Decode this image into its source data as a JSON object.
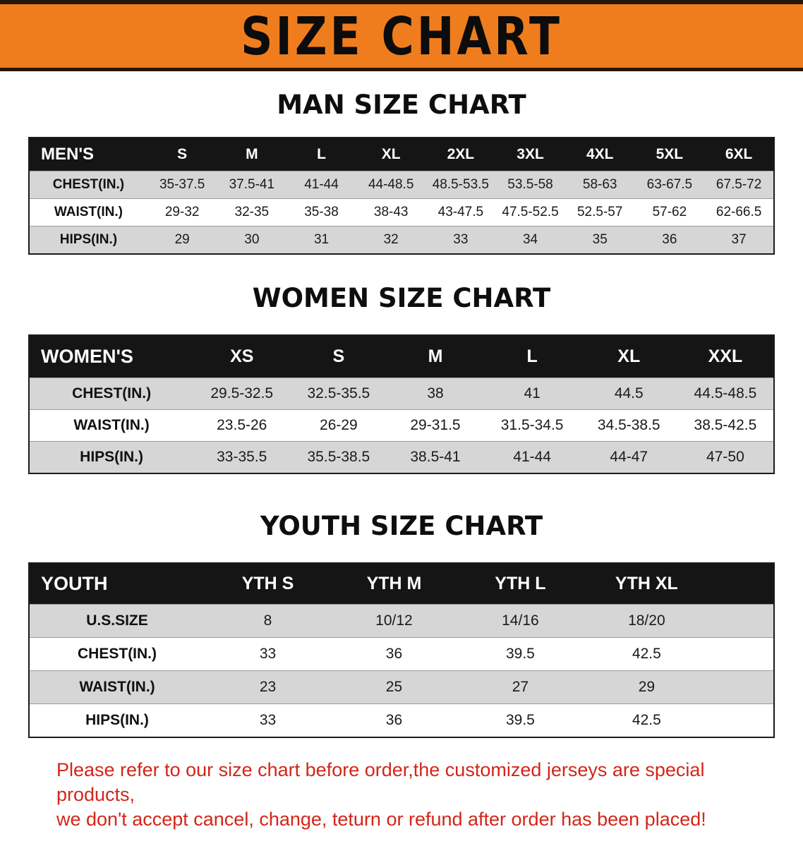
{
  "banner": {
    "title": "SIZE CHART",
    "bg_color": "#ef7d1d"
  },
  "sections": [
    {
      "heading": "MAN SIZE CHART",
      "columns": [
        "MEN'S",
        "S",
        "M",
        "L",
        "XL",
        "2XL",
        "3XL",
        "4XL",
        "5XL",
        "6XL"
      ],
      "rows": [
        [
          "CHEST(IN.)",
          "35-37.5",
          "37.5-41",
          "41-44",
          "44-48.5",
          "48.5-53.5",
          "53.5-58",
          "58-63",
          "63-67.5",
          "67.5-72"
        ],
        [
          "WAIST(IN.)",
          "29-32",
          "32-35",
          "35-38",
          "38-43",
          "43-47.5",
          "47.5-52.5",
          "52.5-57",
          "57-62",
          "62-66.5"
        ],
        [
          "HIPS(IN.)",
          "29",
          "30",
          "31",
          "32",
          "33",
          "34",
          "35",
          "36",
          "37"
        ]
      ]
    },
    {
      "heading": "WOMEN SIZE CHART",
      "columns": [
        "WOMEN'S",
        "XS",
        "S",
        "M",
        "L",
        "XL",
        "XXL"
      ],
      "rows": [
        [
          "CHEST(IN.)",
          "29.5-32.5",
          "32.5-35.5",
          "38",
          "41",
          "44.5",
          "44.5-48.5"
        ],
        [
          "WAIST(IN.)",
          "23.5-26",
          "26-29",
          "29-31.5",
          "31.5-34.5",
          "34.5-38.5",
          "38.5-42.5"
        ],
        [
          "HIPS(IN.)",
          "33-35.5",
          "35.5-38.5",
          "38.5-41",
          "41-44",
          "44-47",
          "47-50"
        ]
      ]
    },
    {
      "heading": "YOUTH SIZE CHART",
      "columns": [
        "YOUTH",
        "YTH S",
        "YTH M",
        "YTH L",
        "YTH XL"
      ],
      "rows": [
        [
          "U.S.SIZE",
          "8",
          "10/12",
          "14/16",
          "18/20"
        ],
        [
          "CHEST(IN.)",
          "33",
          "36",
          "39.5",
          "42.5"
        ],
        [
          "WAIST(IN.)",
          "23",
          "25",
          "27",
          "29"
        ],
        [
          "HIPS(IN.)",
          "33",
          "36",
          "39.5",
          "42.5"
        ]
      ]
    }
  ],
  "footer": {
    "line1": "Please refer to our size chart before order,the customized jerseys are special products,",
    "line2": "we don't accept cancel, change, teturn or refund after order has been placed!",
    "color": "#d2261a"
  }
}
